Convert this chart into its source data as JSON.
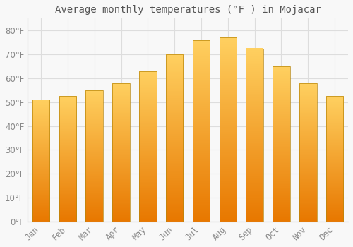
{
  "title": "Average monthly temperatures (°F ) in Mojacar",
  "months": [
    "Jan",
    "Feb",
    "Mar",
    "Apr",
    "May",
    "Jun",
    "Jul",
    "Aug",
    "Sep",
    "Oct",
    "Nov",
    "Dec"
  ],
  "values": [
    51,
    52.5,
    55,
    58,
    63,
    70,
    76,
    77,
    72.5,
    65,
    58,
    52.5
  ],
  "bar_color_top": "#FFD060",
  "bar_color_bottom": "#E87800",
  "bar_edge_color": "#B8860B",
  "background_color": "#F8F8F8",
  "grid_color": "#DDDDDD",
  "text_color": "#888888",
  "title_color": "#555555",
  "ylim": [
    0,
    85
  ],
  "yticks": [
    0,
    10,
    20,
    30,
    40,
    50,
    60,
    70,
    80
  ],
  "ylabel_suffix": "°F",
  "title_fontsize": 10,
  "tick_fontsize": 8.5,
  "bar_width": 0.65
}
